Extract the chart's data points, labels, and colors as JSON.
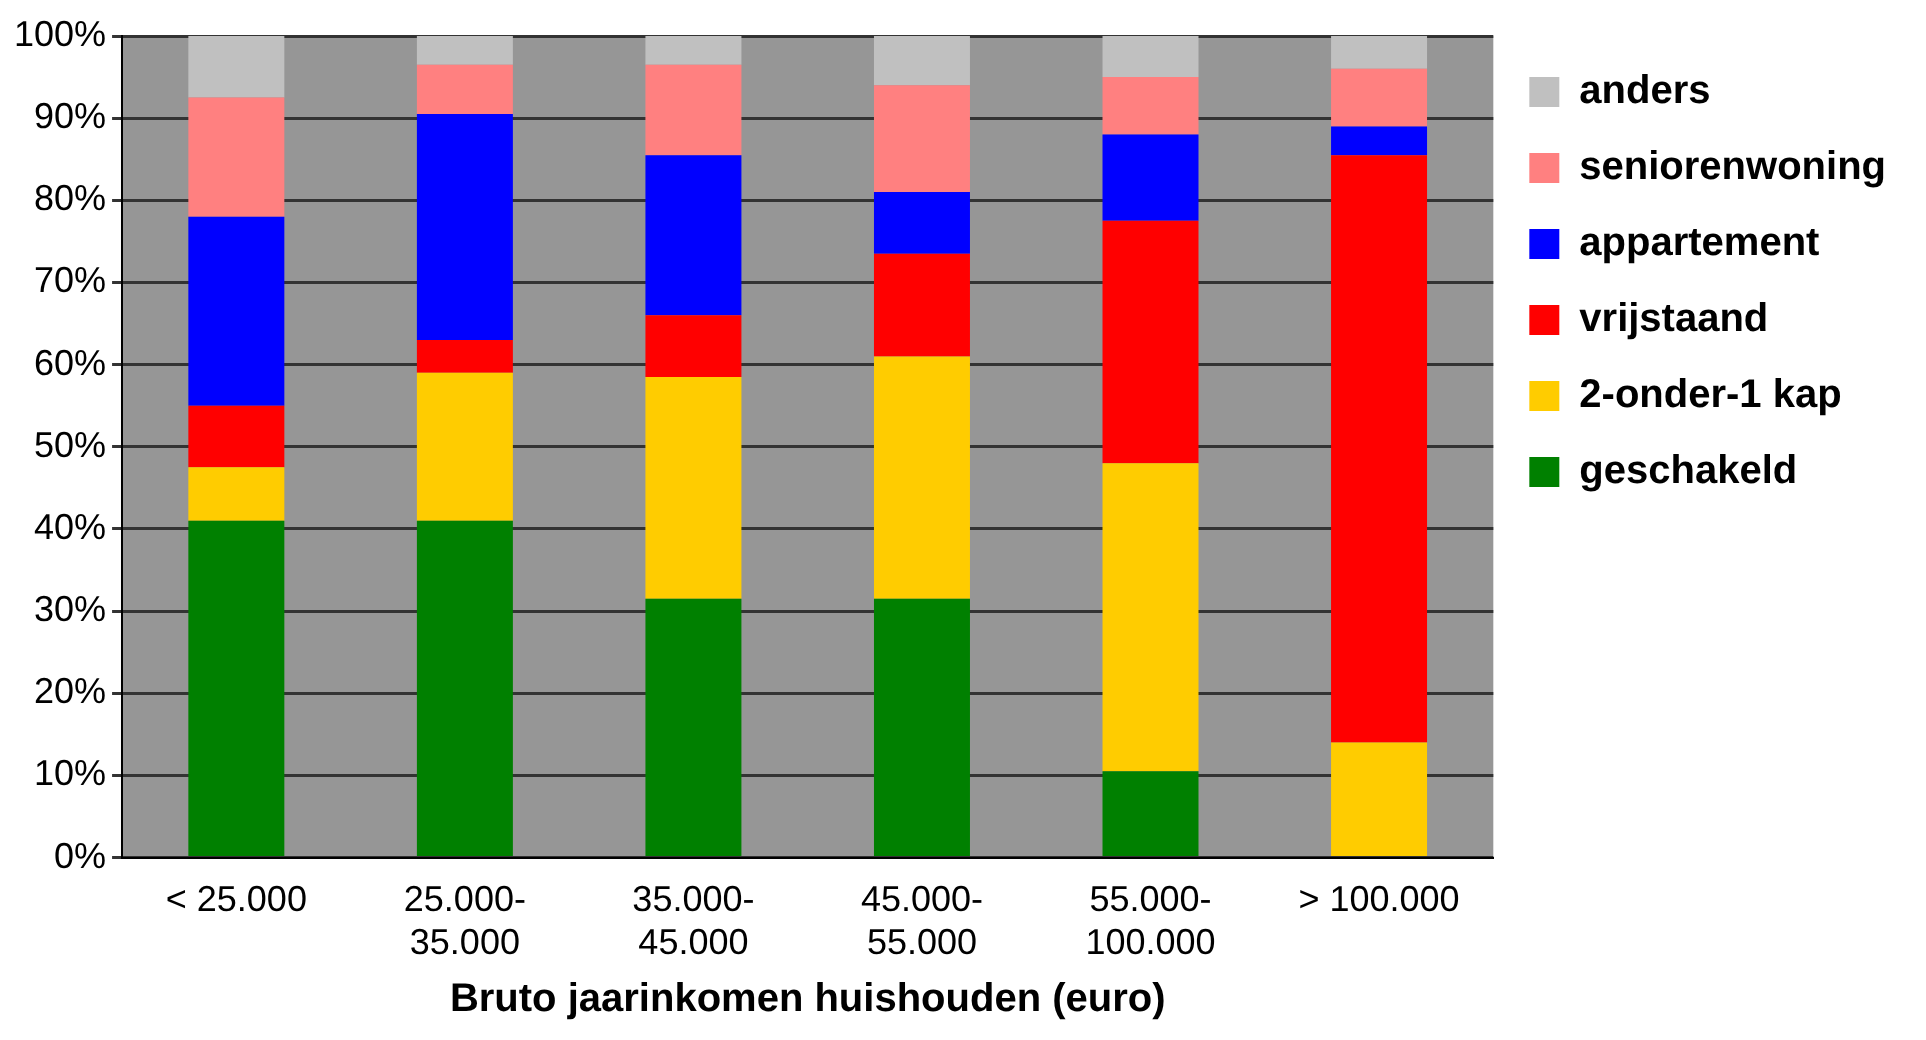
{
  "chart_data": {
    "type": "bar",
    "stacked": true,
    "xlabel": "Bruto jaarinkomen huishouden (euro)",
    "categories": [
      "< 25.000",
      "25.000-\n35.000",
      "35.000-\n45.000",
      "45.000-\n55.000",
      "55.000-\n100.000",
      "> 100.000"
    ],
    "series": [
      {
        "name": "geschakeld",
        "color": "#008000",
        "values": [
          41,
          41,
          31.5,
          31.5,
          10.5,
          0
        ]
      },
      {
        "name": "2-onder-1 kap",
        "color": "#ffcc00",
        "values": [
          6.5,
          18,
          27,
          29.5,
          37.5,
          14
        ]
      },
      {
        "name": "vrijstaand",
        "color": "#ff0000",
        "values": [
          7.5,
          4,
          7.5,
          12.5,
          29.5,
          71.5
        ]
      },
      {
        "name": "appartement",
        "color": "#0000ff",
        "values": [
          23,
          27.5,
          19.5,
          7.5,
          10.5,
          3.5
        ]
      },
      {
        "name": "seniorenwoning",
        "color": "#ff8080",
        "values": [
          14.5,
          6,
          11,
          13,
          7,
          7
        ]
      },
      {
        "name": "anders",
        "color": "#c0c0c0",
        "values": [
          7.5,
          3.5,
          3.5,
          6,
          5,
          4
        ]
      }
    ],
    "ylim": [
      0,
      100
    ],
    "yticks": [
      {
        "value": 0,
        "label": "0%"
      },
      {
        "value": 10,
        "label": "10%"
      },
      {
        "value": 20,
        "label": "20%"
      },
      {
        "value": 30,
        "label": "30%"
      },
      {
        "value": 40,
        "label": "40%"
      },
      {
        "value": 50,
        "label": "50%"
      },
      {
        "value": 60,
        "label": "60%"
      },
      {
        "value": 70,
        "label": "70%"
      },
      {
        "value": 80,
        "label": "80%"
      },
      {
        "value": 90,
        "label": "90%"
      },
      {
        "value": 100,
        "label": "100%"
      }
    ],
    "grid": "y",
    "legend": "right"
  }
}
